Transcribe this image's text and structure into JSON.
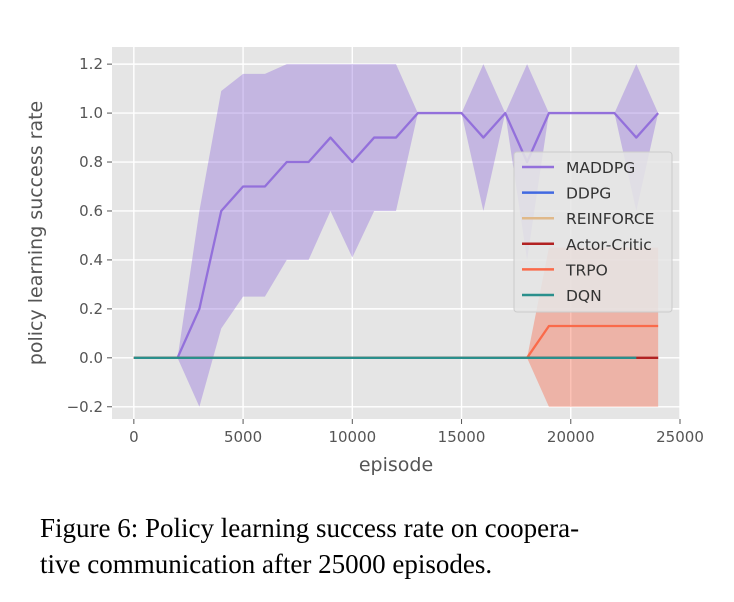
{
  "chart_data": {
    "type": "line",
    "xlabel": "episode",
    "ylabel": "policy learning success rate",
    "xlim": [
      -1000,
      25000
    ],
    "ylim": [
      -0.25,
      1.27
    ],
    "xticks": [
      0,
      5000,
      10000,
      15000,
      20000,
      25000
    ],
    "xtick_labels": [
      "0",
      "5000",
      "10000",
      "15000",
      "20000",
      "25000"
    ],
    "yticks": [
      -0.2,
      0.0,
      0.2,
      0.4,
      0.6,
      0.8,
      1.0,
      1.2
    ],
    "ytick_labels": [
      "−0.2",
      "0.0",
      "0.2",
      "0.4",
      "0.6",
      "0.8",
      "1.0",
      "1.2"
    ],
    "grid": true,
    "legend_position": "right",
    "series": [
      {
        "name": "MADDPG",
        "color": "#9370db",
        "x": [
          2000,
          3000,
          4000,
          5000,
          6000,
          7000,
          8000,
          9000,
          10000,
          11000,
          12000,
          13000,
          14000,
          15000,
          16000,
          17000,
          18000,
          19000,
          20000,
          21000,
          22000,
          23000,
          24000
        ],
        "y": [
          0.0,
          0.2,
          0.6,
          0.7,
          0.7,
          0.8,
          0.8,
          0.9,
          0.8,
          0.9,
          0.9,
          1.0,
          1.0,
          1.0,
          0.9,
          1.0,
          0.8,
          1.0,
          1.0,
          1.0,
          1.0,
          0.9,
          1.0
        ],
        "band_low": [
          0.0,
          -0.2,
          0.12,
          0.25,
          0.25,
          0.4,
          0.4,
          0.6,
          0.41,
          0.6,
          0.6,
          1.0,
          1.0,
          1.0,
          0.6,
          1.0,
          0.4,
          1.0,
          1.0,
          1.0,
          1.0,
          0.6,
          1.0
        ],
        "band_high": [
          0.0,
          0.6,
          1.09,
          1.16,
          1.16,
          1.2,
          1.2,
          1.2,
          1.2,
          1.2,
          1.2,
          1.0,
          1.0,
          1.0,
          1.2,
          1.0,
          1.2,
          1.0,
          1.0,
          1.0,
          1.0,
          1.2,
          1.0
        ]
      },
      {
        "name": "DDPG",
        "color": "#4169e1",
        "x": [
          0,
          24000
        ],
        "y": [
          0.0,
          0.0
        ]
      },
      {
        "name": "REINFORCE",
        "color": "#e0b98a",
        "x": [
          0,
          24000
        ],
        "y": [
          0.0,
          0.0
        ]
      },
      {
        "name": "Actor-Critic",
        "color": "#b22222",
        "x": [
          0,
          24000
        ],
        "y": [
          0.0,
          0.0
        ]
      },
      {
        "name": "TRPO",
        "color": "#fa6a4a",
        "x": [
          0,
          18000,
          19000,
          20000,
          21000,
          22000,
          23000,
          24000
        ],
        "y": [
          0.0,
          0.0,
          0.13,
          0.13,
          0.13,
          0.13,
          0.13,
          0.13
        ],
        "band_low": [
          0.0,
          0.0,
          -0.2,
          -0.2,
          -0.2,
          -0.2,
          -0.2,
          -0.2
        ],
        "band_high": [
          0.0,
          0.0,
          0.45,
          0.45,
          0.45,
          0.45,
          0.45,
          0.45
        ]
      },
      {
        "name": "DQN",
        "color": "#2a8f8c",
        "x": [
          0,
          23000
        ],
        "y": [
          0.0,
          0.0
        ]
      }
    ]
  },
  "caption": {
    "line1": "Figure 6:  Policy learning success rate on coopera-",
    "line2": "tive communication after 25000 episodes."
  }
}
